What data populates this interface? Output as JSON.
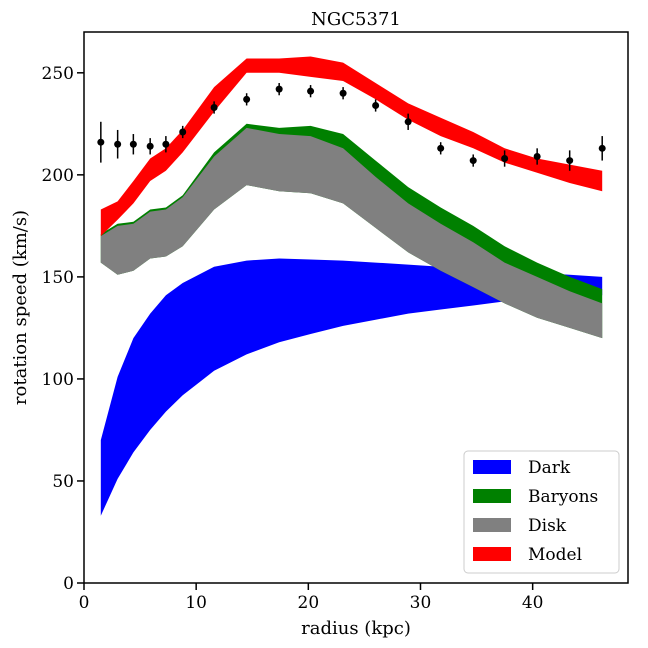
{
  "chart_data": {
    "type": "area",
    "title": "NGC5371",
    "xlabel": "radius (kpc)",
    "ylabel": "rotation speed (km/s)",
    "xlim": [
      0,
      48.5
    ],
    "ylim": [
      0,
      270
    ],
    "xticks": [
      0,
      10,
      20,
      30,
      40
    ],
    "yticks": [
      0,
      50,
      100,
      150,
      200,
      250
    ],
    "grid": false,
    "legend_position": "lower-right",
    "x": [
      1.5,
      3.0,
      4.4,
      5.9,
      7.3,
      8.8,
      11.6,
      14.5,
      17.4,
      20.2,
      23.1,
      26.0,
      28.9,
      31.8,
      34.7,
      37.5,
      40.4,
      43.3,
      46.2
    ],
    "bands": [
      {
        "name": "Dark",
        "color": "#0000ff",
        "lower": [
          33,
          51,
          64,
          75,
          84,
          92,
          104,
          112,
          118,
          122,
          126,
          129,
          132,
          134,
          136,
          138,
          139,
          140,
          141
        ],
        "upper": [
          70,
          101,
          120,
          132,
          141,
          147,
          155,
          158,
          159,
          158.5,
          158,
          157,
          156,
          155,
          154,
          153,
          152,
          151,
          150
        ]
      },
      {
        "name": "Baryons",
        "color": "#008000",
        "lower": [
          157,
          151,
          153,
          159,
          160,
          165,
          183,
          195,
          192,
          191,
          186,
          174,
          162,
          153,
          145,
          137,
          130,
          125,
          120
        ],
        "upper": [
          171,
          176,
          177,
          183,
          184,
          190,
          211,
          225,
          223,
          224,
          220,
          207,
          194,
          184,
          175,
          165,
          157,
          150,
          144
        ]
      },
      {
        "name": "Disk",
        "color": "#808080",
        "lower": [
          157,
          151,
          153,
          159,
          160,
          165,
          183,
          195,
          192,
          191,
          186,
          174,
          162,
          153,
          145,
          137,
          130,
          125,
          120
        ],
        "upper": [
          170,
          175,
          176,
          182,
          183,
          189,
          209,
          223,
          220,
          219,
          213,
          199,
          186,
          176,
          167,
          157,
          150,
          143,
          137
        ]
      },
      {
        "name": "Model",
        "color": "#ff0000",
        "lower": [
          170,
          178,
          186,
          197,
          202,
          211,
          231,
          250,
          250,
          248,
          246,
          237,
          227,
          219,
          213,
          206,
          201,
          196,
          192
        ],
        "upper": [
          183,
          187,
          197,
          208,
          213,
          222,
          243,
          257,
          257,
          258,
          255,
          245,
          235,
          228,
          221,
          213,
          208,
          205,
          202
        ]
      }
    ],
    "observed": {
      "name": "data",
      "x": [
        1.5,
        3.0,
        4.4,
        5.9,
        7.3,
        8.8,
        11.6,
        14.5,
        17.4,
        20.2,
        23.1,
        26.0,
        28.9,
        31.8,
        34.7,
        37.5,
        40.4,
        43.3,
        46.2
      ],
      "y": [
        216,
        215,
        215,
        214,
        215,
        221,
        233,
        237,
        242,
        241,
        240,
        234,
        226,
        213,
        207,
        208,
        209,
        207,
        213
      ],
      "err": [
        10,
        7,
        5,
        4,
        4,
        3,
        3,
        3,
        3,
        3,
        3,
        3,
        4,
        3,
        3,
        4,
        4,
        5,
        6
      ]
    },
    "legend": [
      {
        "label": "Dark",
        "color": "#0000ff"
      },
      {
        "label": "Baryons",
        "color": "#008000"
      },
      {
        "label": "Disk",
        "color": "#808080"
      },
      {
        "label": "Model",
        "color": "#ff0000"
      }
    ]
  }
}
